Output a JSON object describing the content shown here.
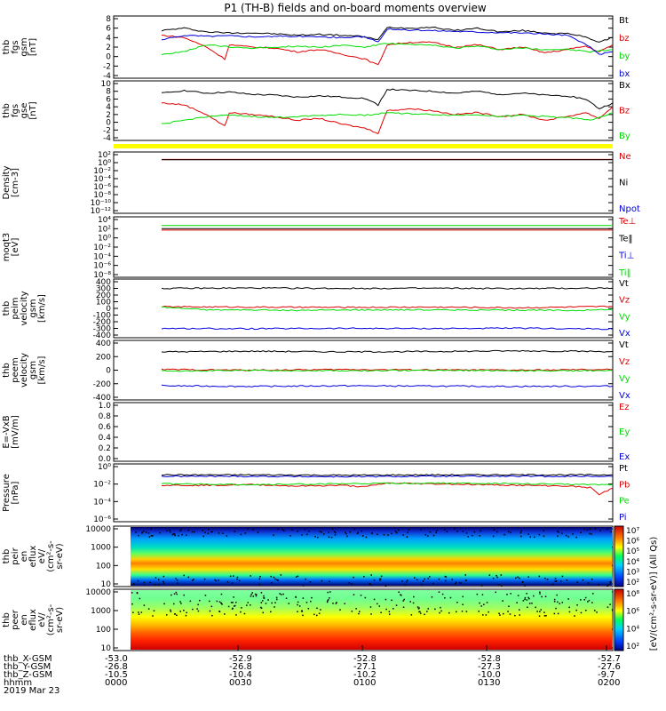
{
  "title": "P1  (TH-B) fields and on-board moments overview",
  "colors": {
    "black": "#000000",
    "red": "#dd0000",
    "green": "#00dd00",
    "blue": "#0000dd",
    "yellow": "#ffff00"
  },
  "chart_data": [
    {
      "type": "line",
      "panel": "fgs",
      "ylabel": [
        "thb",
        "fgs",
        "gsm",
        "[nT]"
      ],
      "yticks": [
        "8",
        "6",
        "4",
        "2",
        "0",
        "-2",
        "-4"
      ],
      "ylim": [
        -4,
        8
      ],
      "legend": [
        {
          "label": "Bt",
          "color": "black"
        },
        {
          "label": "bz",
          "color": "red"
        },
        {
          "label": "by",
          "color": "green"
        },
        {
          "label": "bx",
          "color": "blue"
        }
      ],
      "x_range_hhmm": [
        "0005",
        "0200"
      ],
      "series": [
        {
          "color": "black",
          "x": [
            0,
            0.05,
            0.1,
            0.15,
            0.2,
            0.25,
            0.3,
            0.35,
            0.4,
            0.45,
            0.48,
            0.5,
            0.55,
            0.6,
            0.65,
            0.7,
            0.75,
            0.8,
            0.85,
            0.9,
            0.94,
            0.97,
            1.0
          ],
          "y": [
            5.5,
            6.0,
            5.2,
            5.0,
            5.0,
            4.8,
            4.5,
            4.7,
            4.5,
            4.2,
            3.5,
            6.2,
            6.0,
            6.2,
            5.5,
            6.0,
            5.2,
            5.5,
            5.0,
            4.8,
            4.2,
            3.0,
            4.0
          ]
        },
        {
          "color": "red",
          "x": [
            0,
            0.05,
            0.1,
            0.14,
            0.15,
            0.2,
            0.25,
            0.3,
            0.35,
            0.4,
            0.45,
            0.48,
            0.5,
            0.55,
            0.6,
            0.65,
            0.7,
            0.75,
            0.8,
            0.85,
            0.9,
            0.94,
            0.97,
            1.0
          ],
          "y": [
            4.5,
            4.0,
            2.0,
            -0.5,
            2.5,
            2.0,
            1.8,
            1.0,
            1.5,
            0.5,
            -0.5,
            -1.8,
            2.5,
            3.0,
            3.0,
            2.0,
            2.5,
            1.5,
            2.0,
            0.8,
            1.5,
            2.2,
            1.0,
            2.5
          ]
        },
        {
          "color": "green",
          "x": [
            0,
            0.05,
            0.1,
            0.15,
            0.2,
            0.25,
            0.3,
            0.35,
            0.4,
            0.45,
            0.5,
            0.55,
            0.6,
            0.65,
            0.7,
            0.75,
            0.8,
            0.85,
            0.9,
            0.95,
            1.0
          ],
          "y": [
            0.5,
            1.0,
            2.5,
            2.0,
            1.8,
            2.0,
            2.2,
            2.0,
            2.4,
            2.0,
            2.8,
            2.5,
            2.4,
            1.8,
            2.2,
            1.5,
            1.8,
            1.5,
            1.5,
            1.0,
            1.5
          ]
        },
        {
          "color": "blue",
          "x": [
            0,
            0.05,
            0.1,
            0.15,
            0.2,
            0.3,
            0.4,
            0.45,
            0.48,
            0.5,
            0.55,
            0.6,
            0.7,
            0.8,
            0.9,
            0.95,
            0.97,
            1.0
          ],
          "y": [
            3.5,
            4.5,
            4.3,
            4.4,
            4.2,
            4.3,
            4.0,
            4.2,
            3.0,
            5.8,
            5.6,
            5.5,
            5.2,
            5.0,
            4.5,
            2.0,
            0.5,
            1.0
          ]
        }
      ]
    },
    {
      "type": "line",
      "panel": "fgs-gse",
      "ylabel": [
        "thb",
        "fgs",
        "gse",
        "[nT]"
      ],
      "yticks": [
        "10",
        "8",
        "6",
        "4",
        "2",
        "0",
        "-2",
        "-4"
      ],
      "ylim": [
        -4,
        10
      ],
      "legend": [
        {
          "label": "Bx",
          "color": "black"
        },
        {
          "label": "Bz",
          "color": "red"
        },
        {
          "label": "By",
          "color": "green"
        }
      ],
      "series": [
        {
          "color": "black",
          "x": [
            0,
            0.05,
            0.1,
            0.15,
            0.2,
            0.25,
            0.3,
            0.35,
            0.4,
            0.45,
            0.48,
            0.5,
            0.55,
            0.6,
            0.65,
            0.7,
            0.75,
            0.8,
            0.85,
            0.9,
            0.94,
            0.97,
            1.0
          ],
          "y": [
            7.5,
            8.2,
            7.5,
            7.8,
            7.2,
            7.0,
            6.5,
            6.8,
            6.5,
            6.2,
            4.5,
            8.5,
            8.2,
            8.0,
            7.5,
            8.0,
            7.2,
            7.5,
            7.0,
            6.8,
            6.0,
            3.5,
            5.0
          ]
        },
        {
          "color": "red",
          "x": [
            0,
            0.05,
            0.1,
            0.14,
            0.15,
            0.2,
            0.25,
            0.3,
            0.35,
            0.4,
            0.45,
            0.48,
            0.5,
            0.55,
            0.6,
            0.65,
            0.7,
            0.75,
            0.8,
            0.85,
            0.9,
            0.94,
            0.97,
            1.0
          ],
          "y": [
            5.0,
            4.5,
            2.0,
            -1.0,
            2.5,
            2.0,
            1.5,
            0.5,
            1.0,
            -0.5,
            -1.5,
            -2.8,
            3.0,
            3.5,
            3.0,
            2.0,
            2.5,
            1.5,
            2.0,
            0.5,
            1.5,
            2.5,
            1.0,
            4.0
          ]
        },
        {
          "color": "green",
          "x": [
            0,
            0.05,
            0.1,
            0.15,
            0.2,
            0.25,
            0.3,
            0.35,
            0.4,
            0.45,
            0.5,
            0.55,
            0.6,
            0.65,
            0.7,
            0.75,
            0.8,
            0.85,
            0.9,
            0.95,
            1.0
          ],
          "y": [
            -0.5,
            0.5,
            1.5,
            1.8,
            1.5,
            1.2,
            1.5,
            1.8,
            2.0,
            1.8,
            2.5,
            2.2,
            2.0,
            1.8,
            2.0,
            1.5,
            1.8,
            1.5,
            1.2,
            0.5,
            2.5
          ]
        }
      ]
    },
    {
      "type": "line",
      "panel": "density",
      "ylabel": [
        "Density",
        "[cm-3]"
      ],
      "yticks": [
        "10²",
        "10⁰",
        "10⁻²",
        "10⁻⁴",
        "10⁻⁶",
        "10⁻⁸",
        "10⁻¹⁰",
        "10⁻¹²"
      ],
      "ylim_log10": [
        -12,
        2
      ],
      "legend": [
        {
          "label": "Ne",
          "color": "red"
        },
        {
          "label": "Ni",
          "color": "black"
        },
        {
          "label": "Npot",
          "color": "blue"
        }
      ],
      "series": [
        {
          "color": "red",
          "x": [
            0,
            1
          ],
          "y_log10": [
            0.8,
            0.8
          ]
        },
        {
          "color": "black",
          "x": [
            0,
            1
          ],
          "y_log10": [
            0.7,
            0.7
          ]
        }
      ]
    },
    {
      "type": "line",
      "panel": "temperature",
      "ylabel": [
        "moqt3",
        "[eV]"
      ],
      "yticks": [
        "10⁴",
        "10²",
        "10⁰",
        "10⁻²",
        "10⁻⁴",
        "10⁻⁶",
        "10⁻⁸"
      ],
      "ylim_log10": [
        -8,
        4
      ],
      "legend": [
        {
          "label": "Te⊥",
          "color": "red"
        },
        {
          "label": "Te‖",
          "color": "black"
        },
        {
          "label": "Ti⊥",
          "color": "blue"
        },
        {
          "label": "Ti‖",
          "color": "green"
        }
      ],
      "series": [
        {
          "color": "green",
          "x": [
            0,
            1
          ],
          "y_log10": [
            2.7,
            2.7
          ]
        },
        {
          "color": "black",
          "x": [
            0,
            1
          ],
          "y_log10": [
            2.0,
            2.0
          ]
        },
        {
          "color": "red",
          "x": [
            0,
            1
          ],
          "y_log10": [
            1.7,
            1.7
          ]
        }
      ]
    },
    {
      "type": "line",
      "panel": "peim-velocity",
      "ylabel": [
        "thb",
        "peim",
        "velocity",
        "gsm",
        "[km/s]"
      ],
      "yticks": [
        "400",
        "300",
        "200",
        "100",
        "0",
        "-100",
        "-200",
        "-300",
        "-400"
      ],
      "ylim": [
        -400,
        400
      ],
      "legend": [
        {
          "label": "Vt",
          "color": "black"
        },
        {
          "label": "Vz",
          "color": "red"
        },
        {
          "label": "Vy",
          "color": "green"
        },
        {
          "label": "Vx",
          "color": "blue"
        }
      ],
      "series": [
        {
          "color": "black",
          "x": [
            0,
            0.2,
            0.4,
            0.6,
            0.8,
            1.0
          ],
          "y": [
            300,
            305,
            300,
            302,
            298,
            305
          ]
        },
        {
          "color": "red",
          "x": [
            0,
            0.2,
            0.4,
            0.6,
            0.8,
            1.0
          ],
          "y": [
            25,
            20,
            15,
            20,
            10,
            30
          ]
        },
        {
          "color": "green",
          "x": [
            0,
            0.1,
            0.3,
            0.5,
            0.7,
            0.9,
            1.0
          ],
          "y": [
            20,
            -20,
            -30,
            -20,
            -25,
            -30,
            -20
          ]
        },
        {
          "color": "blue",
          "x": [
            0,
            0.2,
            0.4,
            0.6,
            0.8,
            1.0
          ],
          "y": [
            -300,
            -305,
            -300,
            -302,
            -298,
            -310
          ]
        }
      ]
    },
    {
      "type": "line",
      "panel": "peem-velocity",
      "ylabel": [
        "thb",
        "peem",
        "velocity",
        "gsm",
        "[km/s]"
      ],
      "yticks": [
        "400",
        "200",
        "0",
        "-200",
        "-400"
      ],
      "ylim": [
        -400,
        400
      ],
      "legend": [
        {
          "label": "Vt",
          "color": "black"
        },
        {
          "label": "Vz",
          "color": "red"
        },
        {
          "label": "Vy",
          "color": "green"
        },
        {
          "label": "Vx",
          "color": "blue"
        }
      ],
      "series": [
        {
          "color": "black",
          "x": [
            0,
            0.2,
            0.4,
            0.6,
            0.8,
            1.0
          ],
          "y": [
            270,
            280,
            270,
            275,
            285,
            275
          ]
        },
        {
          "color": "red",
          "x": [
            0,
            0.2,
            0.4,
            0.6,
            0.8,
            1.0
          ],
          "y": [
            10,
            0,
            10,
            5,
            0,
            10
          ]
        },
        {
          "color": "green",
          "x": [
            0,
            0.2,
            0.4,
            0.6,
            0.8,
            1.0
          ],
          "y": [
            -10,
            -5,
            -10,
            0,
            -10,
            -5
          ]
        },
        {
          "color": "blue",
          "x": [
            0,
            0.2,
            0.4,
            0.6,
            0.8,
            1.0
          ],
          "y": [
            -230,
            -240,
            -230,
            -235,
            -240,
            -235
          ]
        }
      ]
    },
    {
      "type": "line",
      "panel": "efield",
      "ylabel": [
        "E=-VxB",
        "[mV/m]"
      ],
      "yticks": [
        "1.0",
        "0.8",
        "0.6",
        "0.4",
        "0.2",
        "0.0"
      ],
      "ylim": [
        0,
        1
      ],
      "legend": [
        {
          "label": "Ez",
          "color": "red"
        },
        {
          "label": "Ey",
          "color": "green"
        },
        {
          "label": "Ex",
          "color": "blue"
        }
      ],
      "series": []
    },
    {
      "type": "line",
      "panel": "pressure",
      "ylabel": [
        "Pressure",
        "[nPa]"
      ],
      "yticks": [
        "10⁰",
        "10⁻²",
        "10⁻⁴",
        "10⁻⁶"
      ],
      "ylim_log10": [
        -6.5,
        0.5
      ],
      "legend": [
        {
          "label": "Pt",
          "color": "black"
        },
        {
          "label": "Pb",
          "color": "red"
        },
        {
          "label": "Pe",
          "color": "green"
        },
        {
          "label": "Pi",
          "color": "blue"
        }
      ],
      "series": [
        {
          "color": "black",
          "x": [
            0,
            0.2,
            0.4,
            0.6,
            0.8,
            1.0
          ],
          "y_log10": [
            -0.6,
            -0.6,
            -0.65,
            -0.6,
            -0.6,
            -0.6
          ]
        },
        {
          "color": "blue",
          "x": [
            0,
            0.2,
            0.4,
            0.6,
            0.8,
            1.0
          ],
          "y_log10": [
            -0.8,
            -0.8,
            -0.85,
            -0.8,
            -0.8,
            -0.8
          ]
        },
        {
          "color": "red",
          "x": [
            0,
            0.1,
            0.2,
            0.3,
            0.4,
            0.45,
            0.5,
            0.6,
            0.7,
            0.8,
            0.9,
            0.95,
            0.97,
            1.0
          ],
          "y_log10": [
            -2.0,
            -2.0,
            -1.9,
            -2.1,
            -2.0,
            -2.2,
            -1.7,
            -1.8,
            -1.9,
            -2.0,
            -2.1,
            -2.3,
            -3.2,
            -2.4
          ]
        },
        {
          "color": "green",
          "x": [
            0,
            0.2,
            0.4,
            0.6,
            0.8,
            1.0
          ],
          "y_log10": [
            -1.8,
            -1.9,
            -1.8,
            -1.7,
            -1.8,
            -1.9
          ]
        }
      ]
    },
    {
      "type": "heatmap",
      "panel": "peir-eflux",
      "ylabel": [
        "thb",
        "peir",
        "en",
        "eflux",
        "eV/",
        "(cm²-s-",
        "sr-eV)"
      ],
      "yticks": [
        "10000",
        "1000",
        "100",
        "10"
      ]
    },
    {
      "type": "heatmap",
      "panel": "peer-eflux",
      "ylabel": [
        "thb",
        "peer",
        "en",
        "eflux",
        "eV/",
        "(cm²-s-",
        "sr-eV)"
      ],
      "yticks": [
        "10000",
        "1000",
        "100",
        "10"
      ]
    }
  ],
  "colorbars": [
    {
      "ticks": [
        "10⁷",
        "10⁶",
        "10⁵",
        "10⁴",
        "10³",
        "10²"
      ],
      "label": "[eV/(cm²-s-sr-eV)]  (All Qs)"
    },
    {
      "ticks": [
        "10⁸",
        "10⁶",
        "10⁴",
        "10²"
      ],
      "label": "[eV/(cm²-s-sr-eV)]  (All Qs)"
    }
  ],
  "xaxis": {
    "row_labels": [
      "thb_X-GSM",
      "thb_Y-GSM",
      "thb_Z-GSM",
      "hhmm",
      "2019 Mar 23"
    ],
    "columns": [
      [
        "-53.0",
        "-26.8",
        "-10.5",
        "0000"
      ],
      [
        "-52.9",
        "-26.8",
        "-10.4",
        "0030"
      ],
      [
        "-52.8",
        "-27.1",
        "-10.2",
        "0100"
      ],
      [
        "-52.8",
        "-27.3",
        "-10.0",
        "0130"
      ],
      [
        "-52.7",
        "-27.6",
        "-9.7",
        "0200"
      ]
    ]
  }
}
